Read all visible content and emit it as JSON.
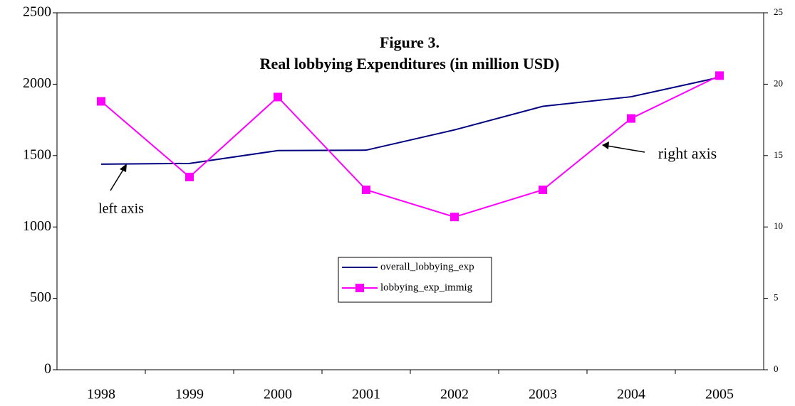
{
  "chart_data": {
    "type": "line",
    "title": "Figure 3.",
    "subtitle": "Real lobbying Expenditures (in million USD)",
    "categories": [
      "1998",
      "1999",
      "2000",
      "2001",
      "2002",
      "2003",
      "2004",
      "2005"
    ],
    "series": [
      {
        "name": "overall_lobbying_exp",
        "color": "#000080",
        "values": [
          1440,
          1445,
          1535,
          1538,
          1680,
          1845,
          1912,
          2048
        ]
      },
      {
        "name": "lobbying_exp_immig",
        "color": "#ff00ff",
        "axis": "y2",
        "marker": "square",
        "values": [
          18.8,
          13.5,
          19.1,
          12.6,
          10.7,
          12.6,
          17.6,
          20.6
        ]
      }
    ],
    "ylim": [
      0,
      2500
    ],
    "yticks": [
      0,
      500,
      1000,
      1500,
      2000,
      2500
    ],
    "y2lim": [
      0,
      25
    ],
    "y2ticks": [
      0,
      5,
      10,
      15,
      20,
      25
    ],
    "grid": false,
    "annotations": [
      "left axis",
      "right axis"
    ]
  }
}
